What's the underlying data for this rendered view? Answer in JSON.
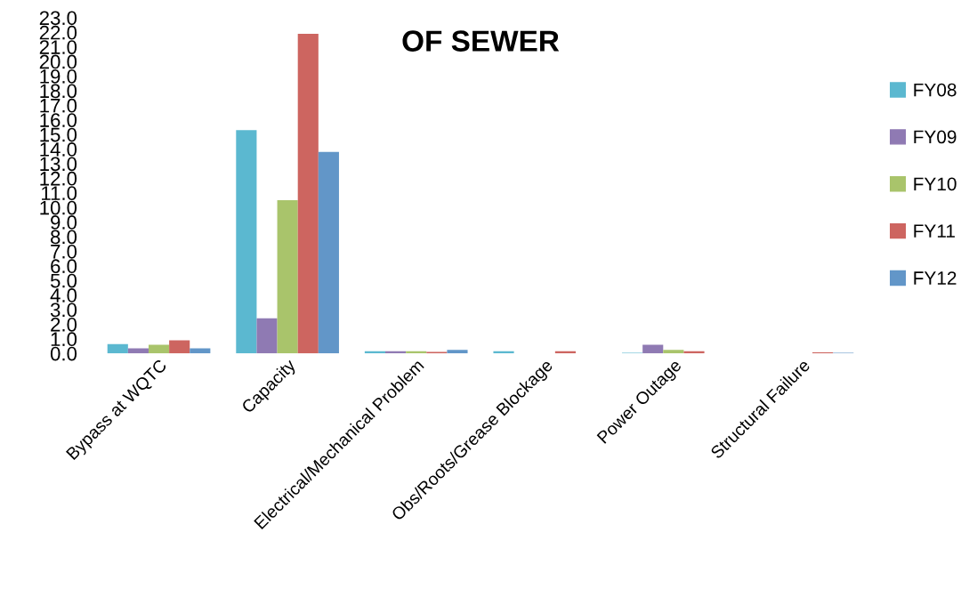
{
  "chart_data": {
    "type": "bar",
    "title": "OF SEWER",
    "categories": [
      "Bypass at WQTC",
      "Capacity",
      "Electrical/Mechanical Problem",
      "Obs/Roots/Grease Blockage",
      "Power Outage",
      "Structural Failure"
    ],
    "series": [
      {
        "name": "FY08",
        "color": "#5bb8d0",
        "values": [
          0.63,
          15.3,
          0.15,
          0.15,
          0.05,
          null
        ]
      },
      {
        "name": "FY09",
        "color": "#8f7ab3",
        "values": [
          0.35,
          2.4,
          0.15,
          null,
          0.59,
          0
        ]
      },
      {
        "name": "FY10",
        "color": "#a9c46b",
        "values": [
          0.59,
          10.5,
          0.15,
          0,
          0.24,
          0
        ]
      },
      {
        "name": "FY11",
        "color": "#cd6560",
        "values": [
          0.89,
          21.9,
          0.1,
          0.15,
          0.15,
          0.08
        ]
      },
      {
        "name": "FY12",
        "color": "#6296c8",
        "values": [
          0.35,
          13.8,
          0.24,
          null,
          null,
          0.05
        ]
      }
    ],
    "ylim": [
      0,
      23
    ],
    "yticks": [
      {
        "value": 0,
        "label": "0.0"
      },
      {
        "value": 1,
        "label": "1.0"
      },
      {
        "value": 2,
        "label": "2.0"
      },
      {
        "value": 3,
        "label": "3.0"
      },
      {
        "value": 4,
        "label": "4.0"
      },
      {
        "value": 5,
        "label": "5.0"
      },
      {
        "value": 6,
        "label": "6.0"
      },
      {
        "value": 7,
        "label": "7.0"
      },
      {
        "value": 8,
        "label": "8.0"
      },
      {
        "value": 9,
        "label": "9.0"
      },
      {
        "value": 10,
        "label": "10.0"
      },
      {
        "value": 11,
        "label": "11.0"
      },
      {
        "value": 12,
        "label": "12.0"
      },
      {
        "value": 13,
        "label": "13.0"
      },
      {
        "value": 14,
        "label": "14.0"
      },
      {
        "value": 15,
        "label": "15.0"
      },
      {
        "value": 16,
        "label": "16.0"
      },
      {
        "value": 17,
        "label": "17.0"
      },
      {
        "value": 18,
        "label": "18.0"
      },
      {
        "value": 19,
        "label": "19.0"
      },
      {
        "value": 20,
        "label": "20.0"
      },
      {
        "value": 21,
        "label": "21.0"
      },
      {
        "value": 22,
        "label": "22.0"
      },
      {
        "value": 23,
        "label": "23.0"
      }
    ],
    "grid": false,
    "legend": "right"
  }
}
